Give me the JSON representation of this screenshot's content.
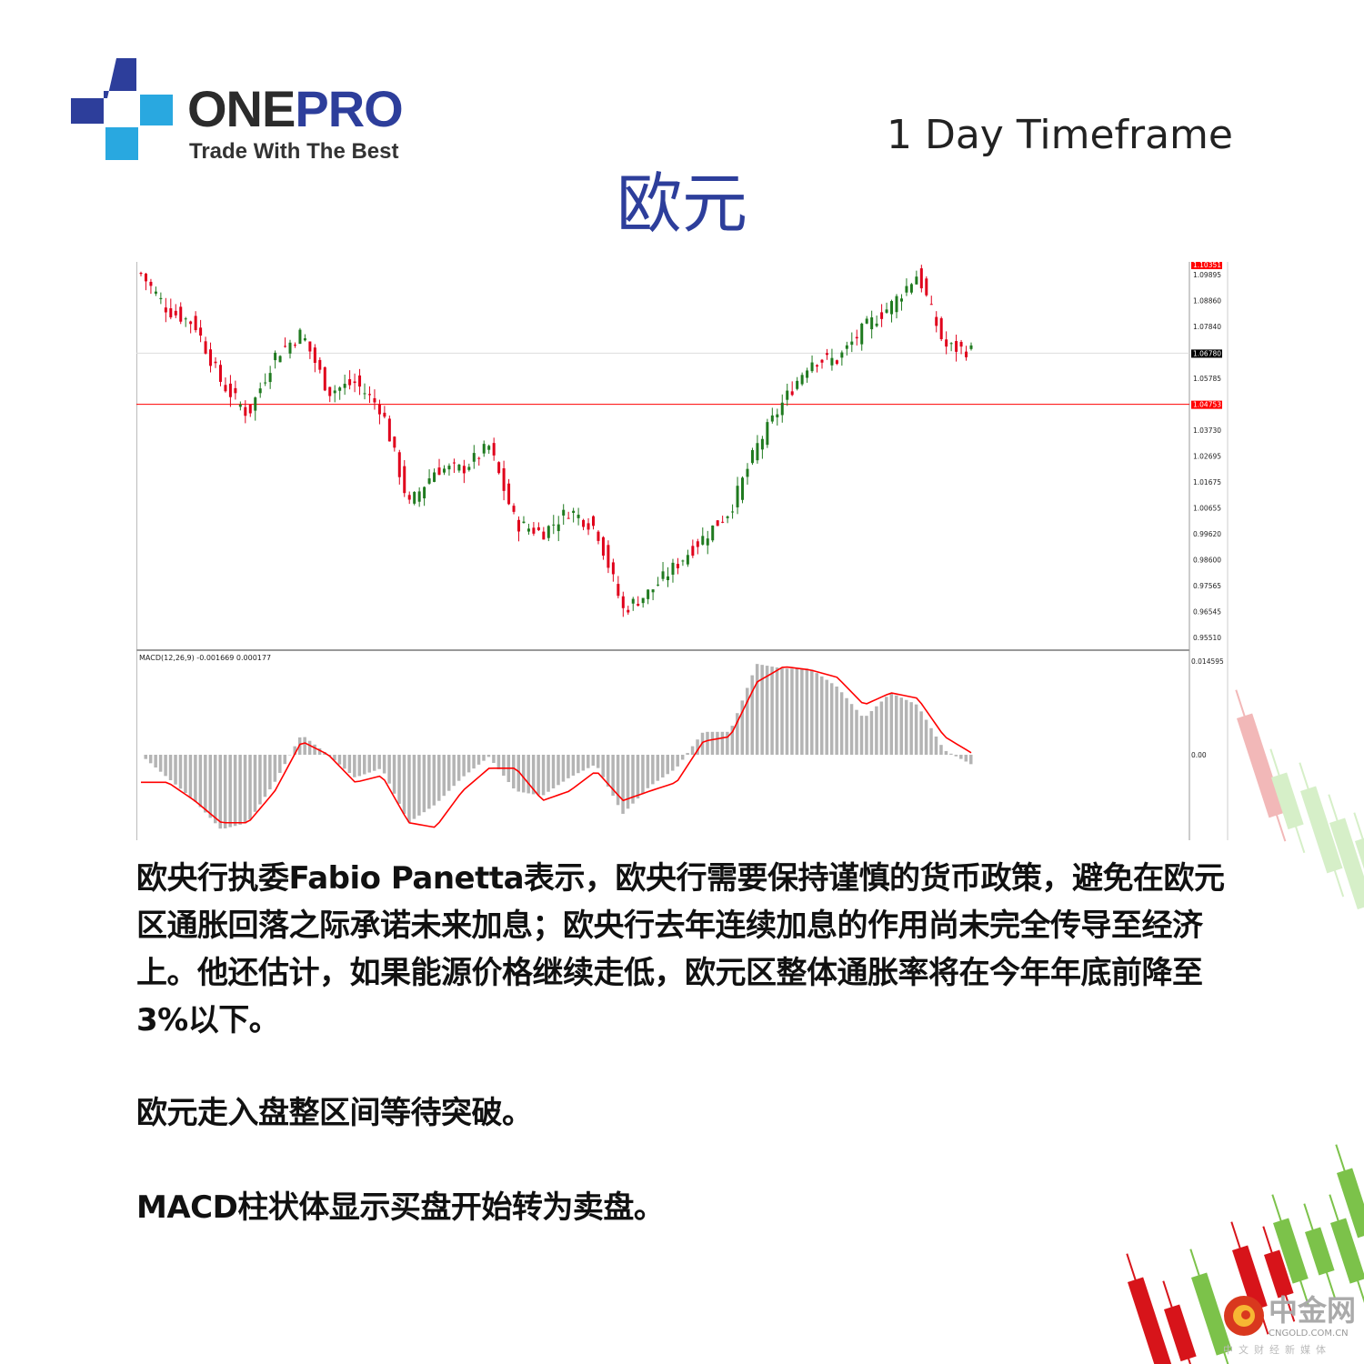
{
  "header": {
    "brand_one": "ONE",
    "brand_pro": "PRO",
    "tagline": "Trade With The Best",
    "timeframe": "1 Day Timeframe",
    "title": "欧元"
  },
  "colors": {
    "brand_blue": "#2d3e9b",
    "logo_light": "#29a8e0",
    "bull": "#1f7a1f",
    "bear": "#e0001b",
    "signal": "#ff0000",
    "histogram": "#b4b4b4"
  },
  "chart_data": [
    {
      "type": "candlestick",
      "symbol_pair": "EUR",
      "yticks": [
        "1.10351",
        "1.09895",
        "1.08860",
        "1.07840",
        "1.06780",
        "1.05785",
        "1.04753",
        "1.03730",
        "1.02695",
        "1.01675",
        "1.00655",
        "0.99620",
        "0.98600",
        "0.97565",
        "0.96545",
        "0.95510"
      ],
      "current_price": "1.06780",
      "support_line": "1.04753",
      "ylim": [
        0.952,
        1.103
      ],
      "approx_closes": [
        1.0993,
        1.0849,
        1.0795,
        1.0561,
        1.0434,
        1.0669,
        1.0759,
        1.0525,
        1.0561,
        1.0453,
        1.0074,
        1.0218,
        1.0218,
        1.0308,
        1.0002,
        0.9966,
        1.0056,
        0.9984,
        0.966,
        0.9732,
        0.984,
        0.9948,
        1.0056,
        1.0308,
        1.0488,
        1.0651,
        1.0651,
        1.0777,
        1.0867,
        1.0993,
        1.0705,
        1.0687
      ]
    },
    {
      "type": "bar+line",
      "label": "MACD(12,26,9) -0.001669 0.000177",
      "yticks": [
        "0.014595",
        "0.00"
      ],
      "histogram": [
        0,
        -0.0034,
        -0.0068,
        -0.0111,
        -0.0101,
        -0.0041,
        0.003,
        0,
        -0.0034,
        -0.002,
        -0.0101,
        -0.0074,
        -0.0034,
        -0.0003,
        -0.0054,
        -0.0061,
        -0.0034,
        -0.0014,
        -0.0088,
        -0.0047,
        -0.002,
        0.0034,
        0.0034,
        0.0135,
        0.0128,
        0.0128,
        0.0101,
        0.0054,
        0.0092,
        0.0074,
        0.0007,
        -0.0014
      ],
      "signal": [
        -0.0041,
        -0.0041,
        -0.0068,
        -0.0101,
        -0.0101,
        -0.0054,
        0.002,
        0,
        -0.0041,
        -0.0031,
        -0.0101,
        -0.0108,
        -0.0054,
        -0.002,
        -0.002,
        -0.0068,
        -0.0054,
        -0.0024,
        -0.0068,
        -0.0054,
        -0.0041,
        0.002,
        0.0027,
        0.0108,
        0.0131,
        0.0126,
        0.0115,
        0.0074,
        0.0092,
        0.0084,
        0.0027,
        0.0003
      ]
    }
  ],
  "body": {
    "p1": "欧央行执委Fabio Panetta表示，欧央行需要保持谨慎的货币政策，避免在欧元区通胀回落之际承诺未来加息；欧央行去年连续加息的作用尚未完全传导至经济上。他还估计，如果能源价格继续走低，欧元区整体通胀率将在今年年底前降至3%以下。",
    "p2": "欧元走入盘整区间等待突破。",
    "p3": "MACD柱状体显示买盘开始转为卖盘。"
  },
  "watermark": {
    "cn": "中金网",
    "en": "CNGOLD.COM.CN",
    "sub": "中文财经新媒体"
  }
}
